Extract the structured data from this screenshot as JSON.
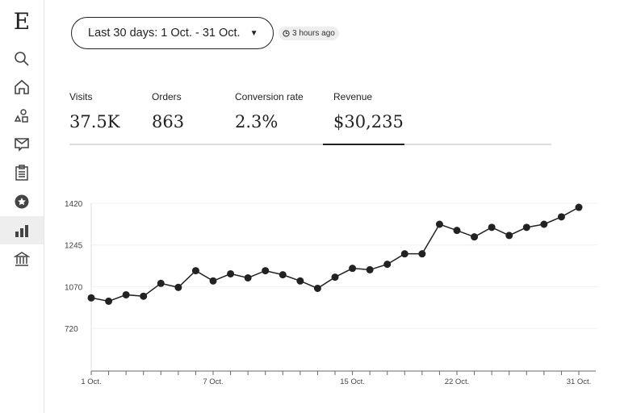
{
  "sidebar": {
    "logo": "E",
    "items": [
      {
        "icon": "search-icon"
      },
      {
        "icon": "home-icon"
      },
      {
        "icon": "shapes-icon"
      },
      {
        "icon": "mail-icon"
      },
      {
        "icon": "clipboard-icon"
      },
      {
        "icon": "star-badge-icon"
      },
      {
        "icon": "bar-chart-icon",
        "active": true
      },
      {
        "icon": "bank-icon"
      }
    ]
  },
  "header": {
    "date_range": "Last 30 days: 1 Oct. - 31 Oct.",
    "updated": "3 hours ago"
  },
  "metrics": [
    {
      "label": "Visits",
      "value": "37.5K"
    },
    {
      "label": "Orders",
      "value": "863"
    },
    {
      "label": "Conversion rate",
      "value": "2.3%"
    },
    {
      "label": "Revenue",
      "value": "$30,235",
      "selected": true
    }
  ],
  "chart_data": {
    "type": "line",
    "y_ticks": [
      "1420",
      "1245",
      "1070",
      "720"
    ],
    "x_tick_labels": [
      {
        "index": 0,
        "label": "1 Oct."
      },
      {
        "index": 7,
        "label": "7 Oct."
      },
      {
        "index": 15,
        "label": "15 Oct."
      },
      {
        "index": 21,
        "label": "22 Oct."
      },
      {
        "index": 28,
        "label": "31 Oct."
      }
    ],
    "values": [
      1023,
      1009,
      1036,
      1030,
      1084,
      1067,
      1137,
      1094,
      1124,
      1107,
      1137,
      1120,
      1094,
      1063,
      1110,
      1147,
      1141,
      1164,
      1208,
      1208,
      1332,
      1306,
      1279,
      1319,
      1285,
      1319,
      1332,
      1363,
      1403
    ],
    "grid": true,
    "color": "#222222"
  }
}
